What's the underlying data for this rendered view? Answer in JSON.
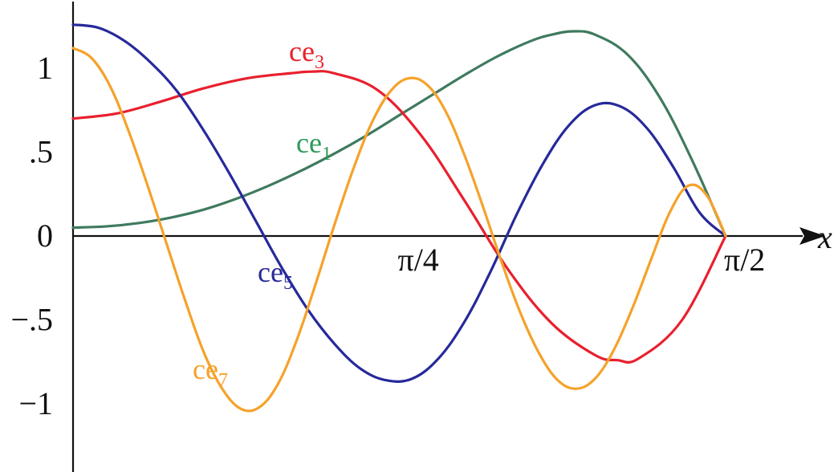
{
  "chart_data": {
    "type": "line",
    "title": "",
    "xlabel": "x",
    "ylabel": "",
    "xlim": [
      0,
      1.6
    ],
    "ylim": [
      -1.35,
      1.35
    ],
    "grid": false,
    "legend": "none",
    "x_ticks": [
      {
        "value": 0.7853981634,
        "label": "π/4"
      },
      {
        "value": 1.5707963268,
        "label": "π/2"
      }
    ],
    "y_ticks": [
      {
        "value": 1,
        "label": "1"
      },
      {
        "value": 0.5,
        "label": ".5"
      },
      {
        "value": 0,
        "label": "0"
      },
      {
        "value": -0.5,
        "label": "−.5"
      },
      {
        "value": -1,
        "label": "−1"
      }
    ],
    "series": [
      {
        "name": "ce1",
        "label_base": "ce",
        "label_sub": "1",
        "color": "#3f7a5e",
        "label_color": "#2e9a58",
        "x": [
          0.0,
          0.0785,
          0.1571,
          0.2356,
          0.3142,
          0.3927,
          0.4712,
          0.5498,
          0.6283,
          0.7069,
          0.7854,
          0.8639,
          0.9425,
          1.021,
          1.0996,
          1.1519,
          1.2043,
          1.2566,
          1.3352,
          1.4137,
          1.4923,
          1.5708
        ],
        "y": [
          0.05,
          0.057,
          0.077,
          0.11,
          0.157,
          0.222,
          0.3,
          0.39,
          0.49,
          0.6,
          0.72,
          0.84,
          0.96,
          1.07,
          1.16,
          1.2,
          1.22,
          1.2,
          1.08,
          0.82,
          0.44,
          0.0
        ]
      },
      {
        "name": "ce3",
        "label_base": "ce",
        "label_sub": "3",
        "color": "#e8202e",
        "label_color": "#e8202e",
        "x": [
          0.0,
          0.1047,
          0.2094,
          0.3142,
          0.4189,
          0.5236,
          0.5759,
          0.6283,
          0.733,
          0.8378,
          0.9425,
          1.0472,
          1.1519,
          1.2566,
          1.3104,
          1.3614,
          1.4661,
          1.5708
        ],
        "y": [
          0.7,
          0.73,
          0.8,
          0.88,
          0.94,
          0.97,
          0.98,
          0.97,
          0.87,
          0.6,
          0.21,
          -0.2,
          -0.52,
          -0.71,
          -0.74,
          -0.73,
          -0.5,
          0.0
        ]
      },
      {
        "name": "ce5",
        "label_base": "ce",
        "label_sub": "5",
        "color": "#27299a",
        "label_color": "#27299a",
        "x": [
          0.0,
          0.0628,
          0.1257,
          0.1885,
          0.2513,
          0.3142,
          0.377,
          0.4398,
          0.5027,
          0.5655,
          0.6283,
          0.6912,
          0.754,
          0.8168,
          0.8796,
          0.9425,
          1.0053,
          1.0681,
          1.131,
          1.1938,
          1.2566,
          1.3195,
          1.3823,
          1.4451,
          1.508,
          1.5708
        ],
        "y": [
          1.26,
          1.24,
          1.16,
          1.03,
          0.86,
          0.63,
          0.37,
          0.09,
          -0.19,
          -0.44,
          -0.64,
          -0.79,
          -0.86,
          -0.85,
          -0.73,
          -0.51,
          -0.21,
          0.13,
          0.43,
          0.66,
          0.78,
          0.77,
          0.64,
          0.41,
          0.14,
          0.0
        ]
      },
      {
        "name": "ce7",
        "label_base": "ce",
        "label_sub": "7",
        "color": "#f5a22a",
        "label_color": "#f5a22a",
        "x": [
          0.0,
          0.0449,
          0.0898,
          0.1346,
          0.1795,
          0.2244,
          0.2693,
          0.3142,
          0.359,
          0.4039,
          0.4488,
          0.4937,
          0.5386,
          0.5834,
          0.6283,
          0.6732,
          0.7181,
          0.763,
          0.8078,
          0.8527,
          0.8976,
          0.9425,
          0.9874,
          1.0322,
          1.0771,
          1.122,
          1.1669,
          1.2118,
          1.2566,
          1.3015,
          1.3464,
          1.3913,
          1.4362,
          1.481,
          1.5259,
          1.5708
        ],
        "y": [
          1.12,
          1.06,
          0.89,
          0.62,
          0.3,
          -0.04,
          -0.38,
          -0.69,
          -0.91,
          -1.03,
          -1.02,
          -0.88,
          -0.62,
          -0.29,
          0.06,
          0.39,
          0.67,
          0.86,
          0.94,
          0.9,
          0.74,
          0.48,
          0.17,
          -0.16,
          -0.46,
          -0.7,
          -0.86,
          -0.91,
          -0.85,
          -0.68,
          -0.43,
          -0.14,
          0.14,
          0.3,
          0.24,
          0.0
        ]
      }
    ]
  }
}
